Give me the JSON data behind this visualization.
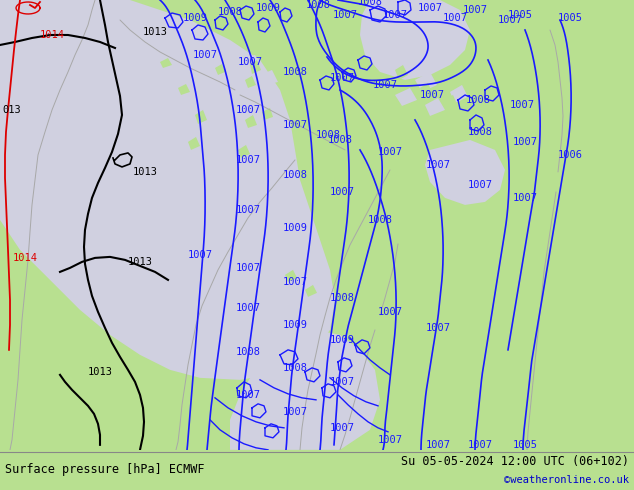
{
  "title_left": "Surface pressure [hPa] ECMWF",
  "title_right": "Su 05-05-2024 12:00 UTC (06+102)",
  "copyright": "©weatheronline.co.uk",
  "land_color": "#b8e090",
  "sea_color": "#d0d0e0",
  "contour_blue": "#1a1aff",
  "contour_black": "#000000",
  "contour_red": "#dd0000",
  "contour_gray": "#a8a8a8",
  "bottom_text_color": "#000000",
  "copyright_color": "#0000cc",
  "figsize": [
    6.34,
    4.9
  ],
  "dpi": 100
}
